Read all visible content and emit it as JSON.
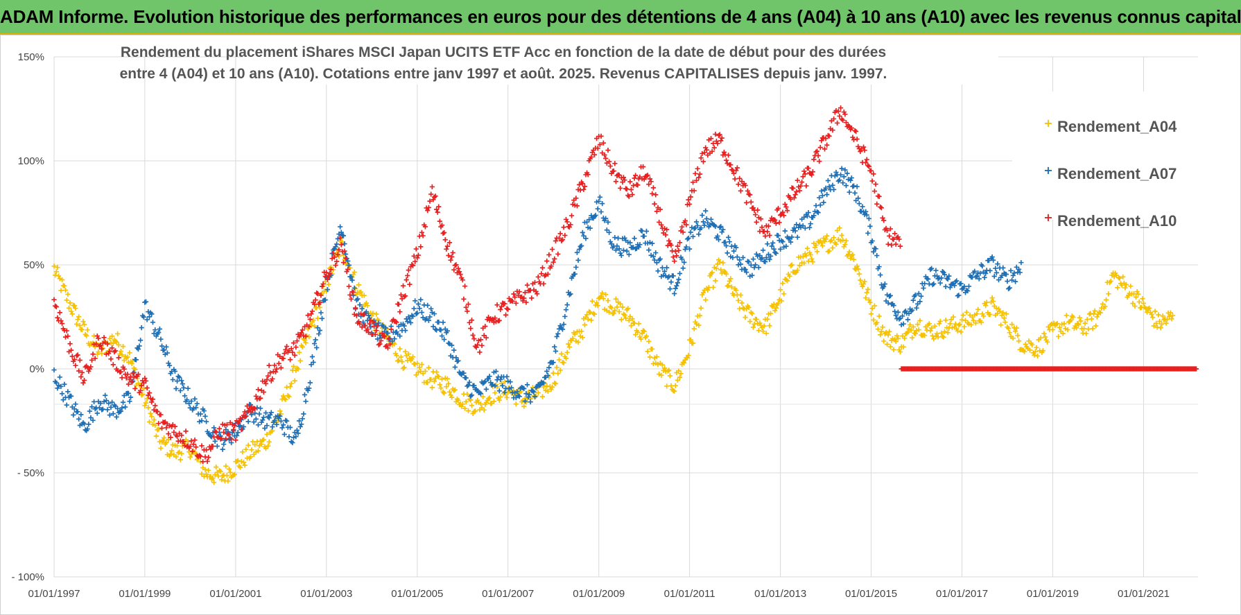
{
  "banner": {
    "title": "ADAM Informe. Evolution historique des performances en euros pour des détentions de 4 ans (A04) à 10 ans (A10) avec les revenus connus capitalisés"
  },
  "chart_data": {
    "type": "scatter",
    "title_lines": [
      "Rendement du placement iShares MSCI Japan UCITS ETF Acc en fonction de la date de début pour des durées",
      "entre 4 (A04) et 10 ans (A10).  Cotations entre janv 1997 et août. 2025. Revenus CAPITALISES depuis janv. 1997."
    ],
    "x_axis": {
      "type": "date",
      "range": [
        "1997-01-01",
        "2022-03-15"
      ],
      "tick_labels": [
        "01/01/1997",
        "01/01/1999",
        "01/01/2001",
        "01/01/2003",
        "01/01/2005",
        "01/01/2007",
        "01/01/2009",
        "01/01/2011",
        "01/01/2013",
        "01/01/2015",
        "01/01/2017",
        "01/01/2019",
        "01/01/2021"
      ]
    },
    "y_axis": {
      "range": [
        -100,
        150
      ],
      "ticks": [
        -100,
        -50,
        0,
        50,
        100,
        150
      ],
      "tick_labels": [
        "- 100%",
        "- 50%",
        "0%",
        "50%",
        "100%",
        "150%"
      ]
    },
    "grid": true,
    "marker": "+",
    "legend_position": "right",
    "series": [
      {
        "name": "Rendement_A04",
        "color": "#f5c100",
        "points": [
          [
            "1997-01-01",
            48
          ],
          [
            "1997-05-01",
            32
          ],
          [
            "1997-09-01",
            18
          ],
          [
            "1998-01-01",
            8
          ],
          [
            "1998-05-01",
            15
          ],
          [
            "1998-09-01",
            5
          ],
          [
            "1999-01-01",
            -15
          ],
          [
            "1999-05-01",
            -35
          ],
          [
            "1999-09-01",
            -40
          ],
          [
            "2000-01-01",
            -38
          ],
          [
            "2000-05-01",
            -50
          ],
          [
            "2000-09-01",
            -52
          ],
          [
            "2001-01-01",
            -47
          ],
          [
            "2001-05-01",
            -40
          ],
          [
            "2001-09-01",
            -35
          ],
          [
            "2002-01-01",
            -20
          ],
          [
            "2002-05-01",
            0
          ],
          [
            "2002-09-01",
            20
          ],
          [
            "2003-01-01",
            40
          ],
          [
            "2003-05-01",
            60
          ],
          [
            "2003-09-01",
            40
          ],
          [
            "2004-01-01",
            25
          ],
          [
            "2004-05-01",
            15
          ],
          [
            "2004-09-01",
            5
          ],
          [
            "2005-01-01",
            0
          ],
          [
            "2005-05-01",
            -5
          ],
          [
            "2005-09-01",
            -8
          ],
          [
            "2006-01-01",
            -15
          ],
          [
            "2006-05-01",
            -18
          ],
          [
            "2006-09-01",
            -12
          ],
          [
            "2007-01-01",
            -10
          ],
          [
            "2007-05-01",
            -15
          ],
          [
            "2007-09-01",
            -12
          ],
          [
            "2008-01-01",
            -5
          ],
          [
            "2008-05-01",
            10
          ],
          [
            "2008-09-01",
            20
          ],
          [
            "2009-01-01",
            35
          ],
          [
            "2009-05-01",
            30
          ],
          [
            "2009-09-01",
            25
          ],
          [
            "2010-01-01",
            15
          ],
          [
            "2010-05-01",
            0
          ],
          [
            "2010-09-01",
            -8
          ],
          [
            "2011-01-01",
            10
          ],
          [
            "2011-05-01",
            35
          ],
          [
            "2011-09-01",
            50
          ],
          [
            "2012-01-01",
            35
          ],
          [
            "2012-05-01",
            25
          ],
          [
            "2012-09-01",
            20
          ],
          [
            "2013-01-01",
            35
          ],
          [
            "2013-05-01",
            50
          ],
          [
            "2013-09-01",
            55
          ],
          [
            "2014-01-01",
            60
          ],
          [
            "2014-05-01",
            65
          ],
          [
            "2014-09-01",
            50
          ],
          [
            "2015-01-01",
            30
          ],
          [
            "2015-05-01",
            15
          ],
          [
            "2015-09-01",
            12
          ],
          [
            "2016-01-01",
            22
          ],
          [
            "2016-05-01",
            18
          ],
          [
            "2016-09-01",
            20
          ],
          [
            "2017-01-01",
            22
          ],
          [
            "2017-05-01",
            25
          ],
          [
            "2017-09-01",
            30
          ],
          [
            "2018-01-01",
            22
          ],
          [
            "2018-05-01",
            12
          ],
          [
            "2018-09-01",
            10
          ],
          [
            "2019-01-01",
            18
          ],
          [
            "2019-05-01",
            22
          ],
          [
            "2019-09-01",
            20
          ],
          [
            "2020-01-01",
            25
          ],
          [
            "2020-05-01",
            45
          ],
          [
            "2020-09-01",
            38
          ],
          [
            "2021-01-01",
            30
          ],
          [
            "2021-05-01",
            22
          ],
          [
            "2021-09-01",
            25
          ]
        ]
      },
      {
        "name": "Rendement_A07",
        "color": "#1f6fb5",
        "points": [
          [
            "1997-01-01",
            -3
          ],
          [
            "1997-05-01",
            -15
          ],
          [
            "1997-09-01",
            -28
          ],
          [
            "1998-01-01",
            -15
          ],
          [
            "1998-05-01",
            -20
          ],
          [
            "1998-09-01",
            -15
          ],
          [
            "1999-01-01",
            30
          ],
          [
            "1999-05-01",
            15
          ],
          [
            "1999-09-01",
            -5
          ],
          [
            "2000-01-01",
            -15
          ],
          [
            "2000-05-01",
            -25
          ],
          [
            "2000-09-01",
            -35
          ],
          [
            "2001-01-01",
            -30
          ],
          [
            "2001-05-01",
            -20
          ],
          [
            "2001-09-01",
            -25
          ],
          [
            "2002-01-01",
            -25
          ],
          [
            "2002-05-01",
            -35
          ],
          [
            "2002-09-01",
            0
          ],
          [
            "2003-01-01",
            40
          ],
          [
            "2003-05-01",
            70
          ],
          [
            "2003-09-01",
            30
          ],
          [
            "2004-01-01",
            20
          ],
          [
            "2004-05-01",
            15
          ],
          [
            "2004-09-01",
            20
          ],
          [
            "2005-01-01",
            30
          ],
          [
            "2005-05-01",
            25
          ],
          [
            "2005-09-01",
            15
          ],
          [
            "2006-01-01",
            -5
          ],
          [
            "2006-05-01",
            -12
          ],
          [
            "2006-09-01",
            -5
          ],
          [
            "2007-01-01",
            -8
          ],
          [
            "2007-05-01",
            -12
          ],
          [
            "2007-09-01",
            -12
          ],
          [
            "2008-01-01",
            5
          ],
          [
            "2008-05-01",
            35
          ],
          [
            "2008-09-01",
            65
          ],
          [
            "2009-01-01",
            80
          ],
          [
            "2009-05-01",
            60
          ],
          [
            "2009-09-01",
            58
          ],
          [
            "2010-01-01",
            65
          ],
          [
            "2010-05-01",
            50
          ],
          [
            "2010-09-01",
            40
          ],
          [
            "2011-01-01",
            62
          ],
          [
            "2011-05-01",
            72
          ],
          [
            "2011-09-01",
            65
          ],
          [
            "2012-01-01",
            55
          ],
          [
            "2012-05-01",
            48
          ],
          [
            "2012-09-01",
            55
          ],
          [
            "2013-01-01",
            62
          ],
          [
            "2013-05-01",
            65
          ],
          [
            "2013-09-01",
            72
          ],
          [
            "2014-01-01",
            85
          ],
          [
            "2014-05-01",
            95
          ],
          [
            "2014-09-01",
            85
          ],
          [
            "2015-01-01",
            65
          ],
          [
            "2015-05-01",
            35
          ],
          [
            "2015-09-01",
            25
          ],
          [
            "2016-01-01",
            32
          ],
          [
            "2016-05-01",
            45
          ],
          [
            "2016-09-01",
            42
          ],
          [
            "2017-01-01",
            38
          ],
          [
            "2017-05-01",
            45
          ],
          [
            "2017-09-01",
            50
          ],
          [
            "2018-01-01",
            42
          ],
          [
            "2018-05-01",
            50
          ]
        ]
      },
      {
        "name": "Rendement_A10",
        "color": "#e82020",
        "points": [
          [
            "1997-01-01",
            33
          ],
          [
            "1997-05-01",
            12
          ],
          [
            "1997-09-01",
            -5
          ],
          [
            "1998-01-01",
            15
          ],
          [
            "1998-05-01",
            5
          ],
          [
            "1998-09-01",
            -5
          ],
          [
            "1999-01-01",
            -8
          ],
          [
            "1999-05-01",
            -25
          ],
          [
            "1999-09-01",
            -30
          ],
          [
            "2000-01-01",
            -35
          ],
          [
            "2000-05-01",
            -42
          ],
          [
            "2000-09-01",
            -30
          ],
          [
            "2001-01-01",
            -30
          ],
          [
            "2001-05-01",
            -20
          ],
          [
            "2001-09-01",
            -5
          ],
          [
            "2002-01-01",
            5
          ],
          [
            "2002-05-01",
            10
          ],
          [
            "2002-09-01",
            25
          ],
          [
            "2003-01-01",
            45
          ],
          [
            "2003-05-01",
            60
          ],
          [
            "2003-09-01",
            25
          ],
          [
            "2004-01-01",
            20
          ],
          [
            "2004-05-01",
            10
          ],
          [
            "2004-09-01",
            35
          ],
          [
            "2005-01-01",
            55
          ],
          [
            "2005-05-01",
            85
          ],
          [
            "2005-09-01",
            60
          ],
          [
            "2006-01-01",
            40
          ],
          [
            "2006-05-01",
            10
          ],
          [
            "2006-09-01",
            25
          ],
          [
            "2007-01-01",
            30
          ],
          [
            "2007-05-01",
            35
          ],
          [
            "2007-09-01",
            40
          ],
          [
            "2008-01-01",
            55
          ],
          [
            "2008-05-01",
            70
          ],
          [
            "2008-09-01",
            90
          ],
          [
            "2009-01-01",
            110
          ],
          [
            "2009-05-01",
            95
          ],
          [
            "2009-09-01",
            85
          ],
          [
            "2010-01-01",
            95
          ],
          [
            "2010-05-01",
            75
          ],
          [
            "2010-09-01",
            50
          ],
          [
            "2011-01-01",
            80
          ],
          [
            "2011-05-01",
            105
          ],
          [
            "2011-09-01",
            110
          ],
          [
            "2012-01-01",
            95
          ],
          [
            "2012-05-01",
            80
          ],
          [
            "2012-09-01",
            65
          ],
          [
            "2013-01-01",
            75
          ],
          [
            "2013-05-01",
            85
          ],
          [
            "2013-09-01",
            95
          ],
          [
            "2014-01-01",
            110
          ],
          [
            "2014-05-01",
            125
          ],
          [
            "2014-09-01",
            110
          ],
          [
            "2015-01-01",
            95
          ],
          [
            "2015-05-01",
            65
          ],
          [
            "2015-09-01",
            60
          ]
        ],
        "flat_zero_segment": {
          "value": 0,
          "from": "2015-09-01",
          "to": "2022-03-01"
        }
      }
    ]
  }
}
